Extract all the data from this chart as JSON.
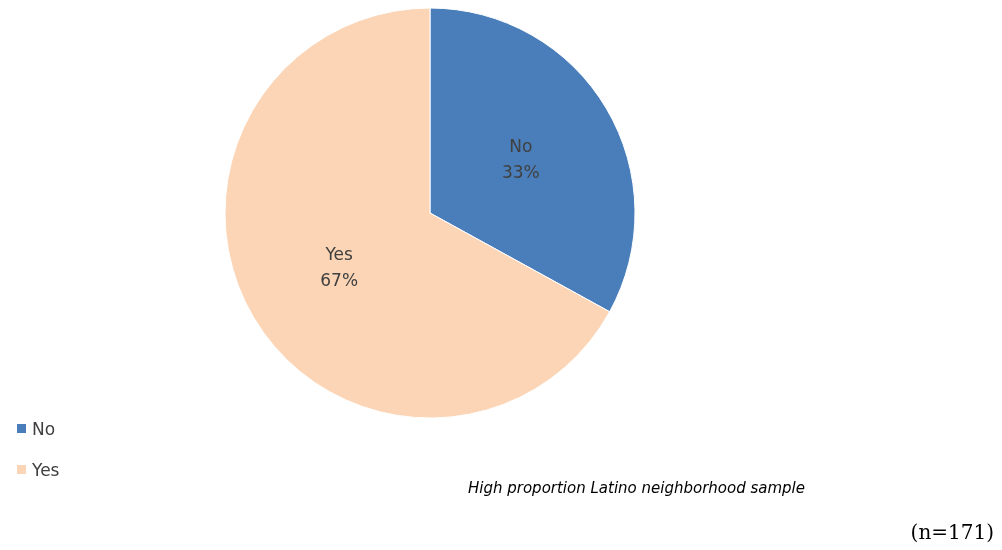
{
  "chart_data": {
    "type": "pie",
    "categories": [
      "No",
      "Yes"
    ],
    "values": [
      33,
      67
    ],
    "colors": [
      "#4a7ebb",
      "#fbd5b5"
    ],
    "value_labels": [
      "33%",
      "67%"
    ],
    "legend": "bottom left",
    "annotations": [
      "High proportion Latino neighborhood sample",
      "(n=171)"
    ]
  }
}
